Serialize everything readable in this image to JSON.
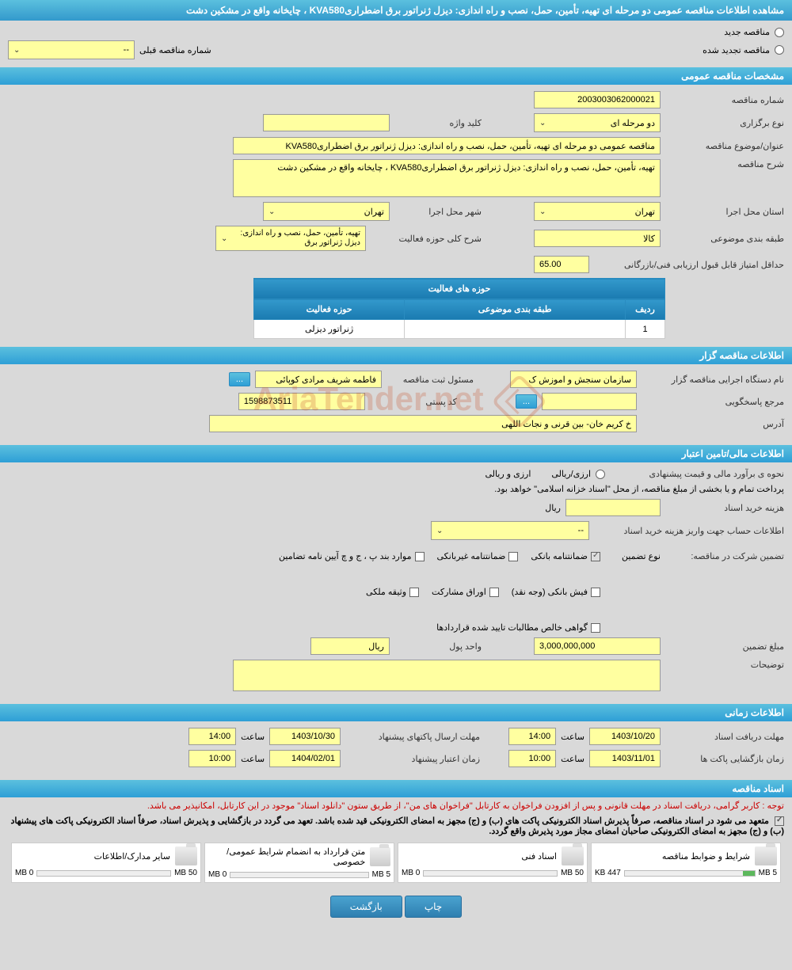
{
  "page_title": "مشاهده اطلاعات مناقصه عمومی دو مرحله ای تهیه، تأمین، حمل، نصب و راه اندازی: دیزل ژنراتور برق اضطراریKVA580 ، چایخانه واقع در مشکین دشت",
  "tender_type": {
    "new_label": "مناقصه جدید",
    "renewed_label": "مناقصه تجدید شده",
    "prev_number_label": "شماره مناقصه قبلی",
    "prev_number_value": "--"
  },
  "sections": {
    "general": "مشخصات مناقصه عمومی",
    "organizer": "اطلاعات مناقصه گزار",
    "financial": "اطلاعات مالی/تامین اعتبار",
    "timing": "اطلاعات زمانی",
    "documents": "اسناد مناقصه"
  },
  "general": {
    "tender_number_label": "شماره مناقصه",
    "tender_number": "2003003062000021",
    "holding_type_label": "نوع برگزاری",
    "holding_type": "دو مرحله ای",
    "keyword_label": "کلید واژه",
    "keyword": "",
    "subject_label": "عنوان/موضوع مناقصه",
    "subject": "مناقصه عمومی دو مرحله ای تهیه، تأمین، حمل، نصب و راه اندازی: دیزل ژنراتور برق اضطراریKVA580",
    "description_label": "شرح مناقصه",
    "description": "تهیه، تأمین، حمل، نصب و راه اندازی: دیزل ژنراتور برق اضطراریKVA580 ، چایخانه واقع در مشکین دشت",
    "province_label": "استان محل اجرا",
    "province": "تهران",
    "city_label": "شهر محل اجرا",
    "city": "تهران",
    "category_label": "طبقه بندی موضوعی",
    "category": "کالا",
    "activity_desc_label": "شرح کلی حوزه فعالیت",
    "activity_desc": "تهیه، تأمین، حمل، نصب و راه اندازی: دیزل ژنراتور برق",
    "min_score_label": "حداقل امتیاز قابل قبول ارزیابی فنی/بازرگانی",
    "min_score": "65.00",
    "activity_table": {
      "title": "حوزه های فعالیت",
      "col_row": "ردیف",
      "col_category": "طبقه بندی موضوعی",
      "col_activity": "حوزه فعالیت",
      "rows": [
        {
          "num": "1",
          "category": "",
          "activity": "ژنراتور دیزلی"
        }
      ]
    }
  },
  "organizer": {
    "org_name_label": "نام دستگاه اجرایی مناقصه گزار",
    "org_name": "سازمان سنجش و اموزش ک",
    "registrar_label": "مسئول ثبت مناقصه",
    "registrar": "فاطمه شریف مرادی کوپائی",
    "responder_label": "مرجع پاسخگویی",
    "responder": "",
    "postal_label": "کد پستی",
    "postal": "1598873511",
    "address_label": "آدرس",
    "address": "خ کریم خان- بین قرنی و نجات اللهی"
  },
  "financial": {
    "estimate_label": "نحوه ی برآورد مالی و قیمت پیشنهادی",
    "currency_label": "ارزی/ریالی",
    "currency_value": "ارزی و ریالی",
    "treasury_note": "پرداخت تمام و یا بخشی از مبلغ مناقصه، از محل \"اسناد خزانه اسلامی\" خواهد بود.",
    "purchase_cost_label": "هزینه خرید اسناد",
    "currency_unit": "ریال",
    "account_info_label": "اطلاعات حساب جهت واریز هزینه خرید اسناد",
    "account_info_value": "--",
    "guarantee_label": "تضمین شرکت در مناقصه:",
    "guarantee_type_label": "نوع تضمین",
    "guarantee_types": {
      "bank_guarantee": "ضمانتنامه بانکی",
      "nonbank_guarantee": "ضمانتنامه غیربانکی",
      "regulation_items": "موارد بند پ ، ج و چ آیین نامه تضامین",
      "bank_receipt": "فیش بانکی (وجه نقد)",
      "participation_bonds": "اوراق مشارکت",
      "property_deposit": "وثیقه ملکی",
      "net_claims": "گواهی خالص مطالبات تایید شده قراردادها"
    },
    "guarantee_amount_label": "مبلغ تضمین",
    "guarantee_amount": "3,000,000,000",
    "unit_label": "واحد پول",
    "unit_value": "ریال",
    "notes_label": "توضیحات"
  },
  "timing": {
    "receive_deadline_label": "مهلت دریافت اسناد",
    "receive_deadline_date": "1403/10/20",
    "receive_deadline_time": "14:00",
    "submit_deadline_label": "مهلت ارسال پاکتهای پیشنهاد",
    "submit_deadline_date": "1403/10/30",
    "submit_deadline_time": "14:00",
    "opening_label": "زمان بازگشایی پاکت ها",
    "opening_date": "1403/11/01",
    "opening_time": "10:00",
    "validity_label": "زمان اعتبار پیشنهاد",
    "validity_date": "1404/02/01",
    "validity_time": "10:00",
    "time_label": "ساعت"
  },
  "documents": {
    "notice1": "توجه : کاربر گرامی، دریافت اسناد در مهلت قانونی و پس از افزودن فراخوان به کارتابل \"فراخوان های من\"، از طریق ستون \"دانلود اسناد\" موجود در این کارتابل، امکانپذیر می باشد.",
    "notice2": "متعهد می شود در اسناد مناقصه، صرفاً پذیرش اسناد الکترونیکی پاکت های (ب) و (ج) مجهز به امضای الکترونیکی قید شده باشد. تعهد می گردد در بازگشایی و پذیرش اسناد، صرفاً اسناد الکترونیکی پاکت های پیشنهاد (ب) و (ج) مجهز به امضای الکترونیکی صاحبان امضای مجاز مورد پذیرش واقع گردد.",
    "items": [
      {
        "title": "شرایط و ضوابط مناقصه",
        "used": "447 KB",
        "total": "5 MB",
        "fill_pct": 9
      },
      {
        "title": "اسناد فنی",
        "used": "0 MB",
        "total": "50 MB",
        "fill_pct": 0
      },
      {
        "title": "متن قرارداد به انضمام شرایط عمومی/خصوصی",
        "used": "0 MB",
        "total": "5 MB",
        "fill_pct": 0
      },
      {
        "title": "سایر مدارک/اطلاعات",
        "used": "0 MB",
        "total": "50 MB",
        "fill_pct": 0
      }
    ]
  },
  "buttons": {
    "print": "چاپ",
    "back": "بازگشت",
    "ellipsis": "..."
  },
  "watermark": "AriaTender.net"
}
